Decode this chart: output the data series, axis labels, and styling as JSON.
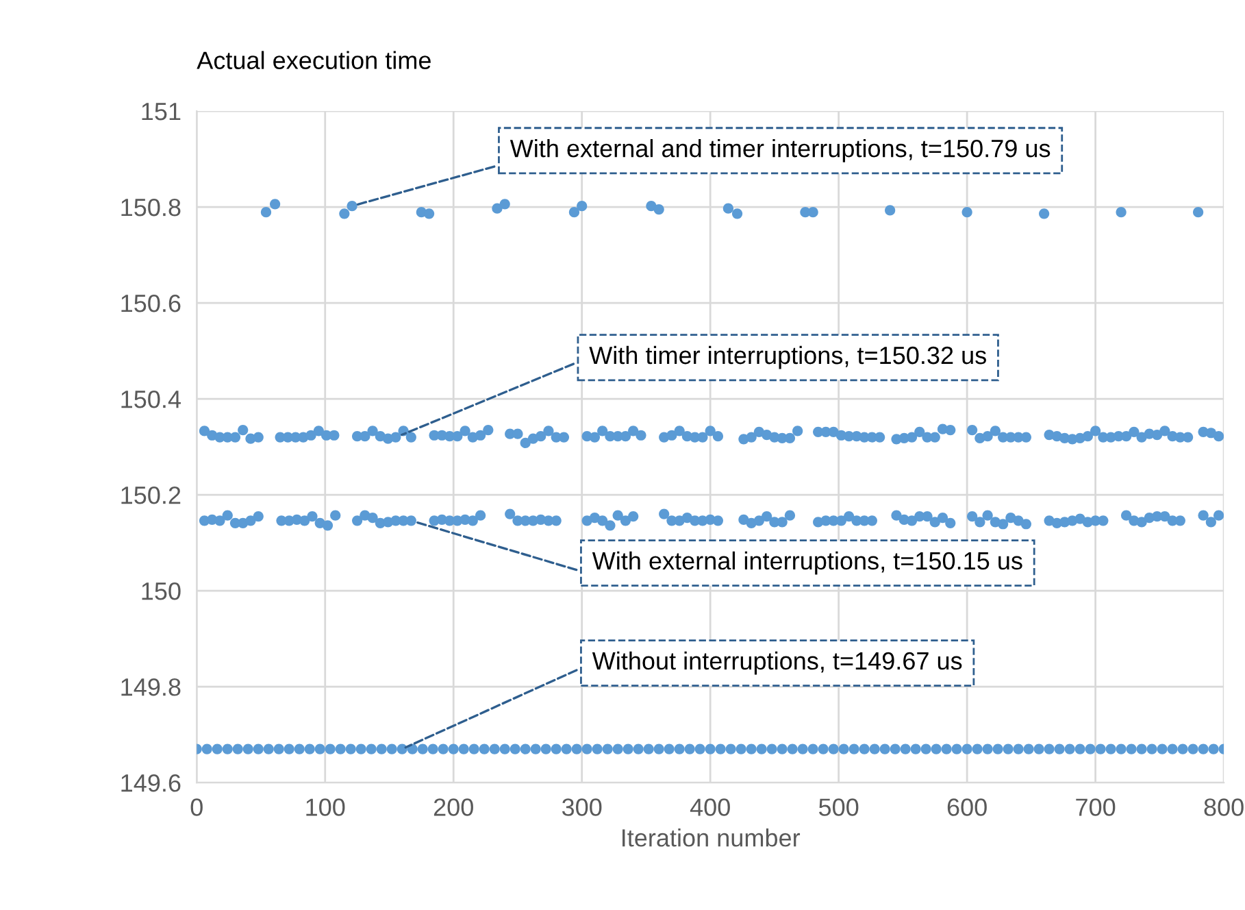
{
  "chart_data": {
    "type": "scatter",
    "ylabel": "Actual execution time",
    "xlabel": "Iteration number",
    "xlim": [
      0,
      800
    ],
    "xticks": [
      0,
      100,
      200,
      300,
      400,
      500,
      600,
      700,
      800
    ],
    "ylim": [
      149.6,
      151
    ],
    "yticks": [
      149.6,
      149.8,
      150,
      150.2,
      150.4,
      150.6,
      150.8,
      151
    ],
    "grid": true,
    "marker": "circle",
    "series": [
      {
        "color": "#5b9bd5",
        "x": [
          54,
          61,
          115,
          121,
          175,
          181,
          234,
          240,
          294,
          300,
          354,
          360,
          414,
          421,
          474,
          480,
          540,
          600,
          660,
          720,
          780
        ],
        "values": [
          150.789,
          150.806,
          150.786,
          150.802,
          150.789,
          150.786,
          150.797,
          150.806,
          150.789,
          150.802,
          150.802,
          150.795,
          150.797,
          150.786,
          150.789,
          150.789,
          150.793,
          150.789,
          150.786,
          150.789,
          150.789
        ]
      },
      {
        "color": "#5b9bd5",
        "x": [
          6,
          12,
          18,
          24,
          30,
          36,
          42,
          48,
          65,
          71,
          77,
          83,
          89,
          95,
          101,
          107,
          125,
          131,
          137,
          143,
          149,
          155,
          161,
          167,
          185,
          191,
          197,
          203,
          209,
          215,
          221,
          227,
          244,
          250,
          256,
          262,
          268,
          274,
          280,
          286,
          304,
          310,
          316,
          322,
          328,
          334,
          340,
          346,
          364,
          370,
          376,
          382,
          388,
          394,
          400,
          406,
          426,
          432,
          438,
          444,
          450,
          456,
          462,
          468,
          484,
          490,
          496,
          502,
          508,
          514,
          520,
          526,
          532,
          545,
          551,
          557,
          563,
          569,
          575,
          581,
          587,
          604,
          610,
          616,
          622,
          628,
          634,
          640,
          646,
          664,
          670,
          676,
          682,
          688,
          694,
          700,
          706,
          712,
          718,
          724,
          730,
          736,
          742,
          748,
          754,
          760,
          766,
          772,
          784,
          790,
          796
        ],
        "values": [
          150.333,
          150.324,
          150.32,
          150.32,
          150.32,
          150.335,
          150.317,
          150.32,
          150.32,
          150.32,
          150.32,
          150.32,
          150.324,
          150.333,
          150.324,
          150.324,
          150.322,
          150.322,
          150.333,
          150.322,
          150.317,
          150.32,
          150.333,
          150.32,
          150.324,
          150.324,
          150.322,
          150.322,
          150.333,
          150.32,
          150.324,
          150.335,
          150.327,
          150.327,
          150.308,
          150.317,
          150.322,
          150.333,
          150.32,
          150.32,
          150.322,
          150.32,
          150.333,
          150.322,
          150.322,
          150.322,
          150.333,
          150.324,
          150.32,
          150.324,
          150.333,
          150.322,
          150.32,
          150.32,
          150.333,
          150.322,
          150.316,
          150.32,
          150.331,
          150.325,
          150.32,
          150.318,
          150.318,
          150.333,
          150.331,
          150.331,
          150.331,
          150.324,
          150.322,
          150.322,
          150.32,
          150.32,
          150.32,
          150.316,
          150.318,
          150.32,
          150.331,
          150.32,
          150.32,
          150.337,
          150.335,
          150.335,
          150.318,
          150.322,
          150.333,
          150.32,
          150.32,
          150.32,
          150.32,
          150.325,
          150.322,
          150.318,
          150.316,
          150.318,
          150.322,
          150.333,
          150.32,
          150.32,
          150.322,
          150.322,
          150.331,
          150.32,
          150.327,
          150.325,
          150.333,
          150.322,
          150.32,
          150.32,
          150.331,
          150.329,
          150.322
        ]
      },
      {
        "color": "#5b9bd5",
        "x": [
          6,
          12,
          18,
          24,
          30,
          36,
          42,
          48,
          66,
          72,
          78,
          84,
          90,
          96,
          102,
          108,
          125,
          131,
          137,
          143,
          149,
          155,
          161,
          167,
          185,
          191,
          197,
          203,
          209,
          215,
          221,
          244,
          250,
          256,
          262,
          268,
          274,
          280,
          304,
          310,
          316,
          322,
          328,
          334,
          340,
          364,
          370,
          376,
          382,
          388,
          394,
          400,
          406,
          426,
          432,
          438,
          444,
          450,
          456,
          462,
          484,
          490,
          496,
          502,
          508,
          514,
          520,
          526,
          545,
          551,
          557,
          563,
          569,
          575,
          581,
          587,
          604,
          610,
          616,
          622,
          628,
          634,
          640,
          646,
          664,
          670,
          676,
          682,
          688,
          694,
          700,
          706,
          724,
          730,
          736,
          742,
          748,
          754,
          760,
          766,
          784,
          790,
          796
        ],
        "values": [
          150.146,
          150.148,
          150.146,
          150.157,
          150.141,
          150.141,
          150.146,
          150.155,
          150.146,
          150.146,
          150.148,
          150.146,
          150.155,
          150.141,
          150.136,
          150.157,
          150.146,
          150.157,
          150.152,
          150.141,
          150.143,
          150.146,
          150.146,
          150.146,
          150.146,
          150.148,
          150.146,
          150.146,
          150.148,
          150.146,
          150.157,
          150.16,
          150.146,
          150.146,
          150.146,
          150.148,
          150.146,
          150.146,
          150.146,
          150.152,
          150.146,
          150.136,
          150.157,
          150.146,
          150.155,
          150.16,
          150.146,
          150.146,
          150.152,
          150.146,
          150.146,
          150.148,
          150.146,
          150.148,
          150.141,
          150.146,
          150.155,
          150.143,
          150.143,
          150.157,
          150.143,
          150.146,
          150.146,
          150.146,
          150.155,
          150.146,
          150.146,
          150.146,
          150.157,
          150.148,
          150.146,
          150.155,
          150.155,
          150.143,
          150.152,
          150.141,
          150.155,
          150.143,
          150.157,
          150.143,
          150.139,
          150.152,
          150.146,
          150.139,
          150.146,
          150.141,
          150.143,
          150.146,
          150.15,
          150.143,
          150.146,
          150.146,
          150.157,
          150.146,
          150.143,
          150.152,
          150.155,
          150.155,
          150.146,
          150.146,
          150.157,
          150.143,
          150.157
        ]
      },
      {
        "color": "#5b9bd5",
        "x": [
          0,
          8,
          16,
          24,
          32,
          40,
          48,
          56,
          64,
          72,
          80,
          88,
          96,
          104,
          112,
          120,
          128,
          136,
          144,
          152,
          160,
          168,
          176,
          184,
          192,
          200,
          208,
          216,
          224,
          232,
          240,
          248,
          256,
          264,
          272,
          280,
          288,
          296,
          304,
          312,
          320,
          328,
          336,
          344,
          352,
          360,
          368,
          376,
          384,
          392,
          400,
          408,
          416,
          424,
          432,
          440,
          448,
          456,
          464,
          472,
          480,
          488,
          496,
          504,
          512,
          520,
          528,
          536,
          544,
          552,
          560,
          568,
          576,
          584,
          592,
          600,
          608,
          616,
          624,
          632,
          640,
          648,
          656,
          664,
          672,
          680,
          688,
          696,
          704,
          712,
          720,
          728,
          736,
          744,
          752,
          760,
          768,
          776,
          784,
          792,
          800
        ],
        "values": [
          149.67,
          149.67,
          149.67,
          149.67,
          149.67,
          149.67,
          149.67,
          149.67,
          149.67,
          149.67,
          149.67,
          149.67,
          149.67,
          149.67,
          149.67,
          149.67,
          149.67,
          149.67,
          149.67,
          149.67,
          149.67,
          149.67,
          149.67,
          149.67,
          149.67,
          149.67,
          149.67,
          149.67,
          149.67,
          149.67,
          149.67,
          149.67,
          149.67,
          149.67,
          149.67,
          149.67,
          149.67,
          149.67,
          149.67,
          149.67,
          149.67,
          149.67,
          149.67,
          149.67,
          149.67,
          149.67,
          149.67,
          149.67,
          149.67,
          149.67,
          149.67,
          149.67,
          149.67,
          149.67,
          149.67,
          149.67,
          149.67,
          149.67,
          149.67,
          149.67,
          149.67,
          149.67,
          149.67,
          149.67,
          149.67,
          149.67,
          149.67,
          149.67,
          149.67,
          149.67,
          149.67,
          149.67,
          149.67,
          149.67,
          149.67,
          149.67,
          149.67,
          149.67,
          149.67,
          149.67,
          149.67,
          149.67,
          149.67,
          149.67,
          149.67,
          149.67,
          149.67,
          149.67,
          149.67,
          149.67,
          149.67,
          149.67,
          149.67,
          149.67,
          149.67,
          149.67,
          149.67,
          149.67,
          149.67,
          149.67,
          149.67
        ]
      }
    ],
    "annotations": [
      {
        "text": "With external and timer interruptions, t=150.79 us",
        "x": 121,
        "y": 150.802
      },
      {
        "text": "With timer interruptions, t=150.32 us",
        "x": 157,
        "y": 150.322
      },
      {
        "text": "With external interruptions, t=150.15 us",
        "x": 167,
        "y": 150.146
      },
      {
        "text": "Without interruptions, t=149.67 us",
        "x": 160,
        "y": 149.67
      }
    ]
  }
}
